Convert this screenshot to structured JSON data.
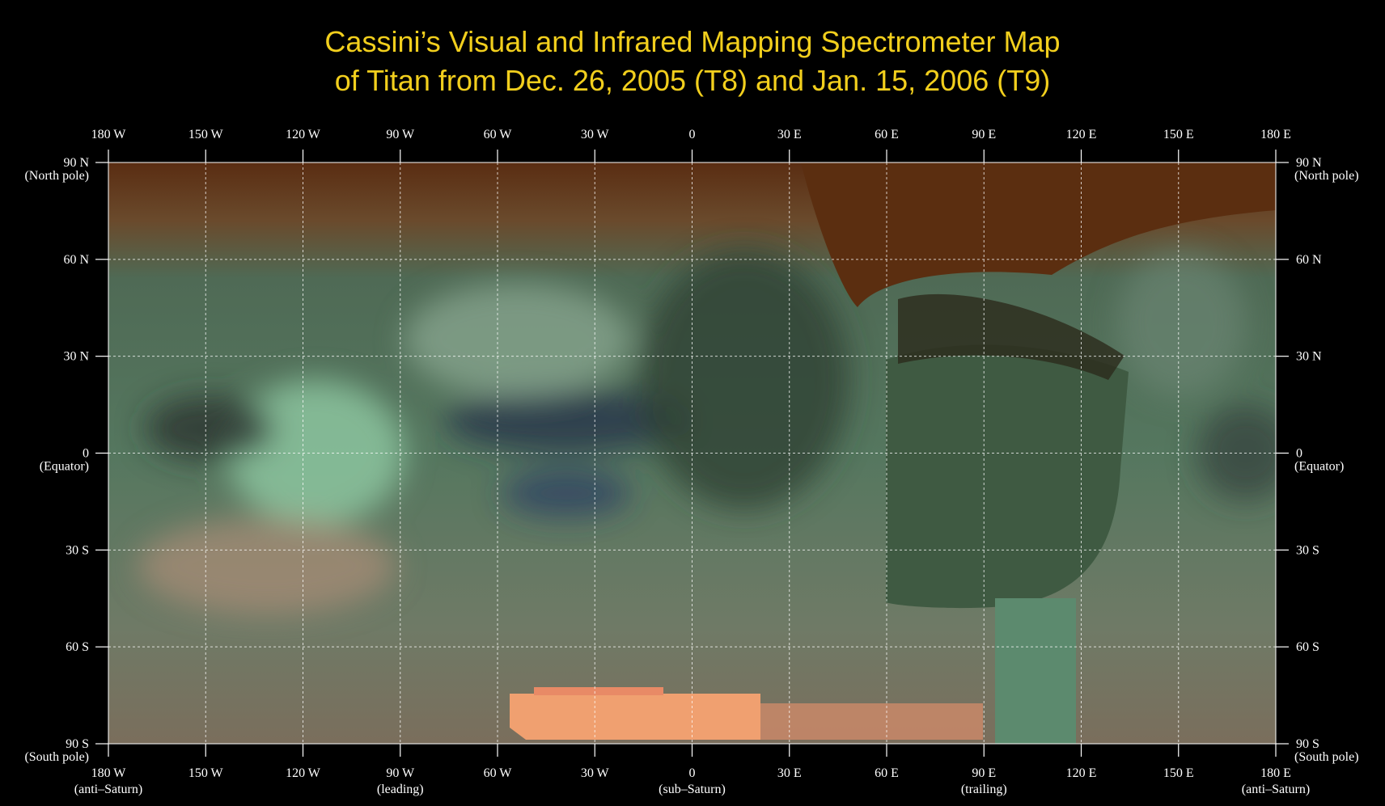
{
  "title": [
    "Cassini’s Visual and Infrared Mapping Spectrometer Map",
    "of Titan from Dec. 26, 2005 (T8) and Jan. 15, 2006 (T9)"
  ],
  "longitude_labels": [
    "180 W",
    "150 W",
    "120 W",
    "90 W",
    "60 W",
    "30 W",
    "0",
    "30 E",
    "60 E",
    "90 E",
    "120 E",
    "150 E",
    "180 E"
  ],
  "longitude_notes": [
    "(anti–Saturn)",
    null,
    null,
    "(leading)",
    null,
    null,
    "(sub–Saturn)",
    null,
    null,
    "(trailing)",
    null,
    null,
    "(anti–Saturn)"
  ],
  "latitude_labels": [
    "90 N",
    "60 N",
    "30 N",
    "0",
    "30 S",
    "60 S",
    "90 S"
  ],
  "latitude_notes": [
    "(North pole)",
    null,
    null,
    "(Equator)",
    null,
    null,
    "(South pole)"
  ]
}
